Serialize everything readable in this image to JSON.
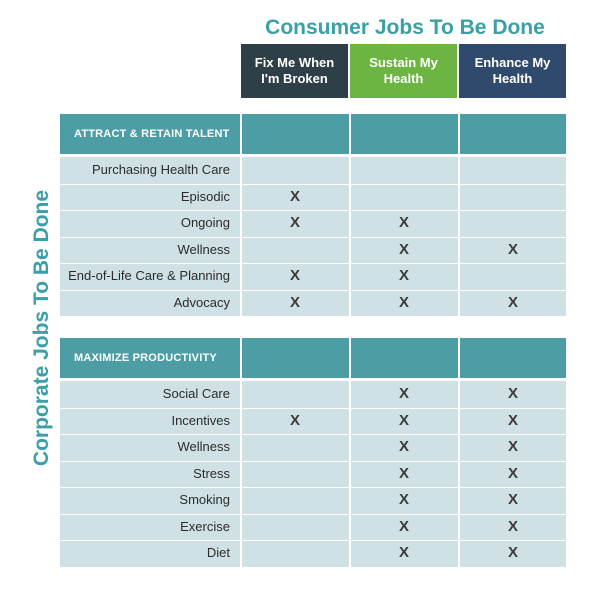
{
  "top_title": "Consumer Jobs To Be Done",
  "side_title": "Corporate Jobs To Be Done",
  "columns": [
    {
      "label": "Fix Me When\nI'm Broken",
      "color": "#2e3f48"
    },
    {
      "label": "Sustain My\nHealth",
      "color": "#6cb543"
    },
    {
      "label": "Enhance My\nHealth",
      "color": "#2f4a6c"
    }
  ],
  "sections": [
    {
      "label": "ATTRACT & RETAIN TALENT",
      "rows": [
        {
          "label": "Purchasing Health Care",
          "marks": [
            "",
            "",
            ""
          ]
        },
        {
          "label": "Episodic",
          "marks": [
            "X",
            "",
            ""
          ]
        },
        {
          "label": "Ongoing",
          "marks": [
            "X",
            "X",
            ""
          ]
        },
        {
          "label": "Wellness",
          "marks": [
            "",
            "X",
            "X"
          ]
        },
        {
          "label": "End-of-Life Care & Planning",
          "marks": [
            "X",
            "X",
            ""
          ]
        },
        {
          "label": "Advocacy",
          "marks": [
            "X",
            "X",
            "X"
          ]
        }
      ]
    },
    {
      "label": "MAXIMIZE PRODUCTIVITY",
      "rows": [
        {
          "label": "Social Care",
          "marks": [
            "",
            "X",
            "X"
          ]
        },
        {
          "label": "Incentives",
          "marks": [
            "X",
            "X",
            "X"
          ]
        },
        {
          "label": "Wellness",
          "marks": [
            "",
            "X",
            "X"
          ]
        },
        {
          "label": "Stress",
          "marks": [
            "",
            "X",
            "X"
          ]
        },
        {
          "label": "Smoking",
          "marks": [
            "",
            "X",
            "X"
          ]
        },
        {
          "label": "Exercise",
          "marks": [
            "",
            "X",
            "X"
          ]
        },
        {
          "label": "Diet",
          "marks": [
            "",
            "X",
            "X"
          ]
        }
      ]
    }
  ]
}
